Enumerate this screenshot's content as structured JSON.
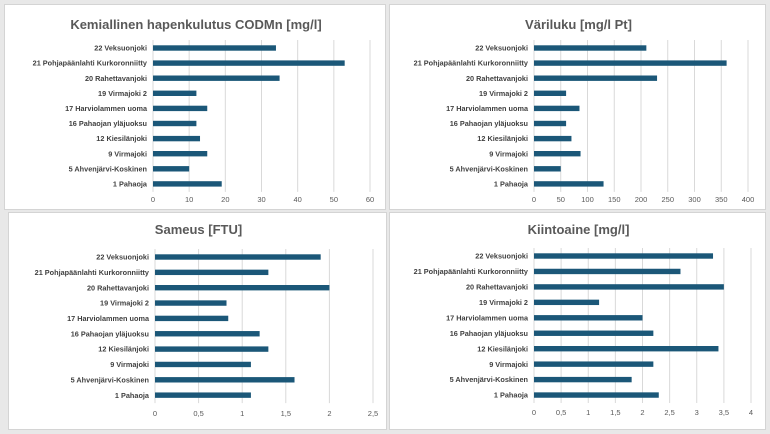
{
  "chart_data": [
    {
      "type": "bar",
      "orientation": "horizontal",
      "title": "Kemiallinen hapenkulutus CODMn [mg/l]",
      "categories": [
        "22 Veksuonjoki",
        "21 Pohjapäänlahti Kurkoronniitty",
        "20 Rahettavanjoki",
        "19 Virmajoki 2",
        "17 Harviolammen uoma",
        "16 Pahaojan yläjuoksu",
        "12 Kiesilänjoki",
        "9 Virmajoki",
        "5 Ahvenjärvi-Koskinen",
        "1 Pahaoja"
      ],
      "values": [
        34,
        53,
        35,
        12,
        15,
        12,
        13,
        15,
        10,
        19
      ],
      "xlim": [
        0,
        60
      ],
      "ticks": [
        0,
        10,
        20,
        30,
        40,
        50,
        60
      ],
      "tick_labels": [
        "0",
        "10",
        "20",
        "30",
        "40",
        "50",
        "60"
      ],
      "grid": true,
      "color": "#1b5778"
    },
    {
      "type": "bar",
      "orientation": "horizontal",
      "title": "Väriluku [mg/l Pt]",
      "categories": [
        "22 Veksuonjoki",
        "21 Pohjapäänlahti Kurkoronniitty",
        "20 Rahettavanjoki",
        "19 Virmajoki 2",
        "17 Harviolammen uoma",
        "16 Pahaojan yläjuoksu",
        "12 Kiesilänjoki",
        "9 Virmajoki",
        "5 Ahvenjärvi-Koskinen",
        "1 Pahaoja"
      ],
      "values": [
        210,
        360,
        230,
        60,
        85,
        60,
        70,
        87,
        50,
        130
      ],
      "xlim": [
        0,
        400
      ],
      "ticks": [
        0,
        50,
        100,
        150,
        200,
        250,
        300,
        350,
        400
      ],
      "tick_labels": [
        "0",
        "50",
        "100",
        "150",
        "200",
        "250",
        "300",
        "350",
        "400"
      ],
      "grid": true,
      "color": "#1b5778"
    },
    {
      "type": "bar",
      "orientation": "horizontal",
      "title": "Sameus [FTU]",
      "categories": [
        "22 Veksuonjoki",
        "21 Pohjapäänlahti Kurkoronniitty",
        "20 Rahettavanjoki",
        "19 Virmajoki 2",
        "17 Harviolammen uoma",
        "16 Pahaojan yläjuoksu",
        "12 Kiesilänjoki",
        "9 Virmajoki",
        "5 Ahvenjärvi-Koskinen",
        "1 Pahaoja"
      ],
      "values": [
        1.9,
        1.3,
        2.0,
        0.82,
        0.84,
        1.2,
        1.3,
        1.1,
        1.6,
        1.1
      ],
      "xlim": [
        0,
        2.5
      ],
      "ticks": [
        0,
        0.5,
        1,
        1.5,
        2,
        2.5
      ],
      "tick_labels": [
        "0",
        "0,5",
        "1",
        "1,5",
        "2",
        "2,5"
      ],
      "grid": true,
      "color": "#1b5778"
    },
    {
      "type": "bar",
      "orientation": "horizontal",
      "title": "Kiintoaine [mg/l]",
      "categories": [
        "22 Veksuonjoki",
        "21 Pohjapäänlahti Kurkoronniitty",
        "20 Rahettavanjoki",
        "19 Virmajoki 2",
        "17 Harviolammen uoma",
        "16 Pahaojan yläjuoksu",
        "12 Kiesilänjoki",
        "9 Virmajoki",
        "5 Ahvenjärvi-Koskinen",
        "1 Pahaoja"
      ],
      "values": [
        3.3,
        2.7,
        3.5,
        1.2,
        2.0,
        2.2,
        3.4,
        2.2,
        1.8,
        2.3
      ],
      "xlim": [
        0,
        4
      ],
      "ticks": [
        0,
        0.5,
        1,
        1.5,
        2,
        2.5,
        3,
        3.5,
        4
      ],
      "tick_labels": [
        "0",
        "0,5",
        "1",
        "1,5",
        "2",
        "2,5",
        "3",
        "3,5",
        "4"
      ],
      "grid": true,
      "color": "#1b5778"
    }
  ]
}
